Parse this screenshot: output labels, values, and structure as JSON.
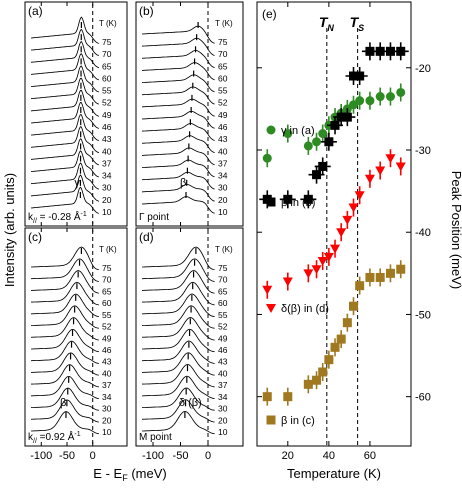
{
  "figure": {
    "y_label_left": "Intensity (arb. units)",
    "x_label_left": "E - E",
    "x_label_left_sub": "F",
    "x_label_left_unit": " (meV)",
    "x_ticks": [
      "-100",
      "-50",
      "0"
    ],
    "legend_T_header": "T (K)",
    "temperatures": [
      "75",
      "70",
      "65",
      "60",
      "55",
      "52",
      "49",
      "46",
      "43",
      "40",
      "37",
      "34",
      "30",
      "20",
      "10"
    ]
  },
  "panels": [
    {
      "id": "a",
      "label": "(a)",
      "feature": "γ",
      "info_main": "k",
      "info_sub": "//",
      "info_rest": "= -0.28 Å",
      "info_sup": "-1",
      "peak_shape": "sharp"
    },
    {
      "id": "b",
      "label": "(b)",
      "feature": "β",
      "info_main": "Γ point",
      "info_sub": "",
      "info_rest": "",
      "info_sup": "",
      "peak_shape": "step"
    },
    {
      "id": "c",
      "label": "(c)",
      "feature": "β",
      "info_main": "k",
      "info_sub": "//",
      "info_rest": "=0.92 Å",
      "info_sup": "-1",
      "peak_shape": "broad"
    },
    {
      "id": "d",
      "label": "(d)",
      "feature": "δ (β)",
      "info_main": "M point",
      "info_sub": "",
      "info_rest": "",
      "info_sup": "",
      "peak_shape": "broad"
    }
  ],
  "chart_data": {
    "type": "scatter",
    "panel_label": "(e)",
    "xlabel": "Temperature (K)",
    "ylabel": "Peak Position (meV)",
    "xlim": [
      5,
      80
    ],
    "ylim": [
      -66,
      -12
    ],
    "x_ticks": [
      20,
      40,
      60
    ],
    "y_ticks": [
      -20,
      -30,
      -40,
      -50,
      -60
    ],
    "vlines": [
      {
        "label": "T",
        "sub": "N",
        "x": 39
      },
      {
        "label": "T",
        "sub": "S",
        "x": 54
      }
    ],
    "series": [
      {
        "name": "γ in (a)",
        "color": "#2e8b23",
        "marker": "circle",
        "x": [
          10,
          20,
          30,
          34,
          37,
          40,
          43,
          46,
          49,
          52,
          55,
          60,
          65,
          70,
          75
        ],
        "y": [
          -31,
          -28,
          -29.5,
          -29,
          -28,
          -27,
          -26,
          -25.5,
          -25,
          -24.5,
          -24,
          -24,
          -23.5,
          -23.5,
          -23
        ]
      },
      {
        "name": "β in (b)",
        "color": "#000000",
        "marker": "square",
        "x": [
          10,
          20,
          30,
          34,
          37,
          40,
          43,
          46,
          49,
          52,
          55,
          60,
          65,
          70,
          75
        ],
        "y": [
          -36,
          -36,
          -36,
          -33,
          -32,
          -29,
          -27,
          -26,
          -26,
          -21,
          -21,
          -18,
          -18,
          -18,
          -18
        ]
      },
      {
        "name": "δ(β) in (d)",
        "color": "#ff0000",
        "marker": "triangle-down",
        "x": [
          10,
          20,
          30,
          34,
          37,
          40,
          43,
          46,
          49,
          52,
          55,
          60,
          65,
          70,
          75
        ],
        "y": [
          -47,
          -46,
          -45,
          -44.5,
          -43.5,
          -43,
          -42,
          -40,
          -38.5,
          -37,
          -35.5,
          -33.5,
          -32.5,
          -31,
          -32
        ]
      },
      {
        "name": "β in (c)",
        "color": "#a07820",
        "marker": "square",
        "x": [
          10,
          20,
          30,
          34,
          37,
          40,
          43,
          46,
          49,
          52,
          55,
          60,
          65,
          70,
          75
        ],
        "y": [
          -60,
          -60,
          -58.5,
          -58,
          -57,
          -55.5,
          -54,
          -53,
          -51,
          -49,
          -46.5,
          -45.5,
          -45.5,
          -45,
          -44.5
        ]
      }
    ]
  }
}
